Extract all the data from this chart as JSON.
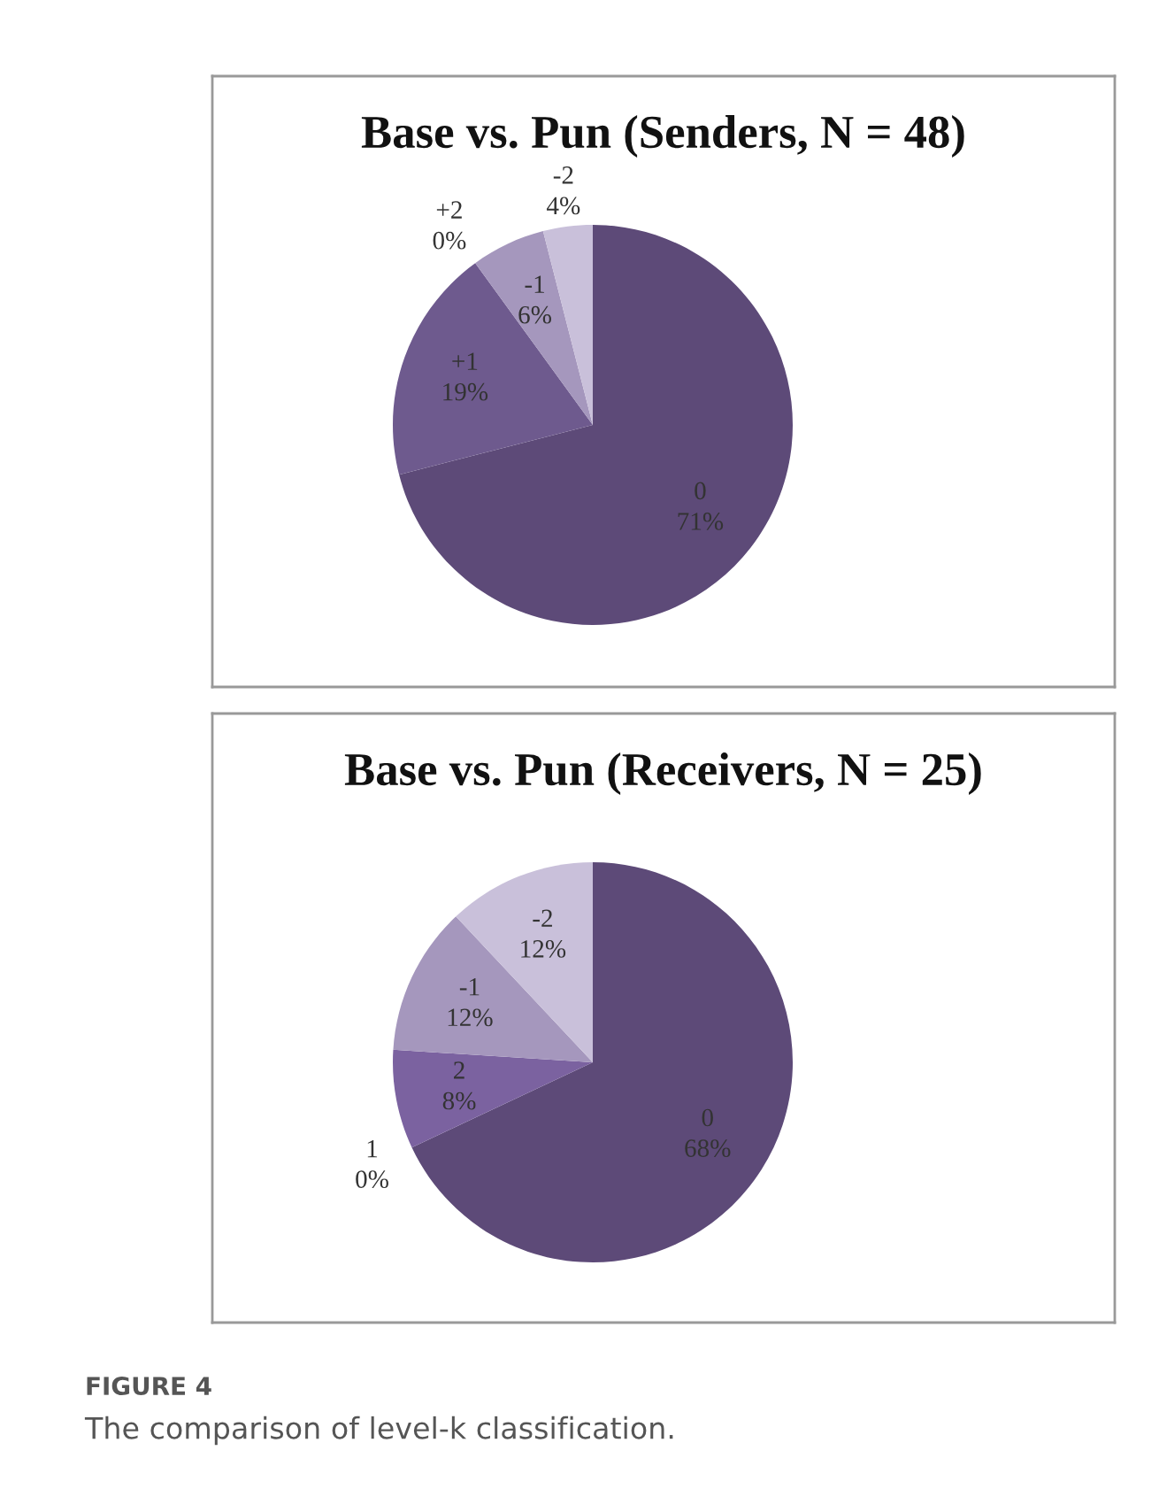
{
  "chart_data": [
    {
      "type": "pie",
      "title": "Base vs. Pun (Senders, N = 48)",
      "categories": [
        "0",
        "+1",
        "+2",
        "-1",
        "-2"
      ],
      "values": [
        71,
        19,
        0,
        6,
        4
      ],
      "value_labels": [
        "71%",
        "19%",
        "0%",
        "6%",
        "4%"
      ],
      "colors": [
        "#5d4a78",
        "#6e5a8e",
        "#7b62a0",
        "#a597bd",
        "#c9c0da"
      ]
    },
    {
      "type": "pie",
      "title": "Base vs. Pun (Receivers, N = 25)",
      "categories": [
        "0",
        "1",
        "2",
        "-1",
        "-2"
      ],
      "values": [
        68,
        0,
        8,
        12,
        12
      ],
      "value_labels": [
        "68%",
        "0%",
        "8%",
        "12%",
        "12%"
      ],
      "colors": [
        "#5d4a78",
        "#6e5a8e",
        "#7b62a0",
        "#a597bd",
        "#c9c0da"
      ],
      "annotations": [
        "FIGURE 4",
        "The comparison of level-k classification."
      ]
    }
  ]
}
